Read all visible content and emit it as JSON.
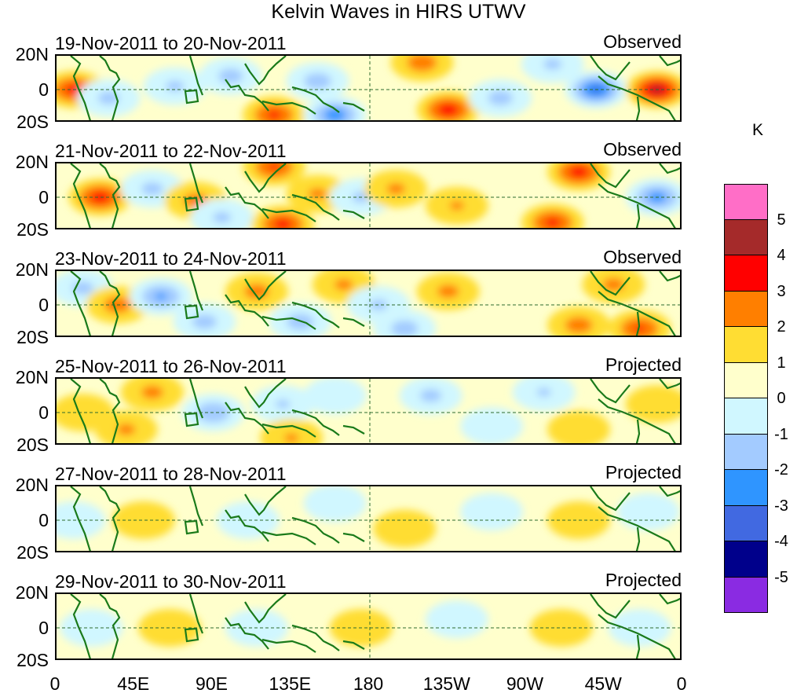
{
  "chart_data": {
    "type": "heatmap",
    "title": "Kelvin Waves in HIRS UTWV",
    "xlabel": "",
    "ylabel": "",
    "x_ticks": [
      "0",
      "45E",
      "90E",
      "135E",
      "180",
      "135W",
      "90W",
      "45W",
      "0"
    ],
    "y_ticks": [
      "20N",
      "0",
      "20S"
    ],
    "colorbar": {
      "unit": "K",
      "levels": [
        "5",
        "4",
        "3",
        "2",
        "1",
        "0",
        "-1",
        "-2",
        "-3",
        "-4",
        "-5"
      ],
      "colors": [
        "#ff6ec7",
        "#a52a2a",
        "#ff0000",
        "#ff7f00",
        "#ffdd33",
        "#ffffcc",
        "#d0f7ff",
        "#a3cbff",
        "#2f95ff",
        "#4169e1",
        "#00008b",
        "#8a2be2"
      ]
    },
    "panels": [
      {
        "date_range": "19-Nov-2011 to 20-Nov-2011",
        "status": "Observed",
        "anomalies": [
          {
            "lon": 10,
            "lat": 0,
            "value": 2.4
          },
          {
            "lon": 30,
            "lat": -5,
            "value": -1.3
          },
          {
            "lon": 68,
            "lat": 2,
            "value": -1.2
          },
          {
            "lon": 100,
            "lat": 8,
            "value": -1.4
          },
          {
            "lon": 125,
            "lat": -15,
            "value": 2.2
          },
          {
            "lon": 150,
            "lat": 5,
            "value": -1.5
          },
          {
            "lon": 160,
            "lat": -15,
            "value": -2.6
          },
          {
            "lon": 210,
            "lat": 16,
            "value": 1.6
          },
          {
            "lon": 225,
            "lat": -12,
            "value": 2.6
          },
          {
            "lon": 255,
            "lat": -5,
            "value": -1.4
          },
          {
            "lon": 285,
            "lat": 15,
            "value": -1.2
          },
          {
            "lon": 310,
            "lat": 0,
            "value": -3.1
          },
          {
            "lon": 345,
            "lat": 0,
            "value": 3.2
          }
        ]
      },
      {
        "date_range": "21-Nov-2011 to 22-Nov-2011",
        "status": "Observed",
        "anomalies": [
          {
            "lon": 25,
            "lat": 0,
            "value": 2.5
          },
          {
            "lon": 55,
            "lat": 5,
            "value": -1.3
          },
          {
            "lon": 80,
            "lat": -2,
            "value": 1.4
          },
          {
            "lon": 95,
            "lat": -12,
            "value": -1.2
          },
          {
            "lon": 125,
            "lat": 18,
            "value": 2.1
          },
          {
            "lon": 130,
            "lat": -16,
            "value": 2.4
          },
          {
            "lon": 150,
            "lat": 2,
            "value": 1.2
          },
          {
            "lon": 175,
            "lat": 0,
            "value": -1.2
          },
          {
            "lon": 195,
            "lat": 5,
            "value": 1.2
          },
          {
            "lon": 230,
            "lat": -5,
            "value": 1.1
          },
          {
            "lon": 285,
            "lat": -15,
            "value": 2.3
          },
          {
            "lon": 300,
            "lat": 15,
            "value": 2.5
          },
          {
            "lon": 345,
            "lat": 0,
            "value": -2.4
          }
        ]
      },
      {
        "date_range": "23-Nov-2011 to 24-Nov-2011",
        "status": "Observed",
        "anomalies": [
          {
            "lon": 15,
            "lat": 10,
            "value": -1.3
          },
          {
            "lon": 35,
            "lat": 0,
            "value": 1.5
          },
          {
            "lon": 60,
            "lat": 5,
            "value": -2.1
          },
          {
            "lon": 85,
            "lat": -10,
            "value": -1.4
          },
          {
            "lon": 115,
            "lat": 8,
            "value": 1.4
          },
          {
            "lon": 140,
            "lat": -10,
            "value": -1.5
          },
          {
            "lon": 165,
            "lat": 12,
            "value": 1.2
          },
          {
            "lon": 185,
            "lat": 0,
            "value": -1.2
          },
          {
            "lon": 200,
            "lat": -14,
            "value": -1.5
          },
          {
            "lon": 225,
            "lat": 8,
            "value": 1.3
          },
          {
            "lon": 300,
            "lat": -12,
            "value": 1.5
          },
          {
            "lon": 320,
            "lat": 12,
            "value": 1.3
          },
          {
            "lon": 335,
            "lat": -14,
            "value": 2.1
          }
        ]
      },
      {
        "date_range": "25-Nov-2011 to 26-Nov-2011",
        "status": "Projected",
        "anomalies": [
          {
            "lon": 15,
            "lat": 0,
            "value": 0.8
          },
          {
            "lon": 40,
            "lat": -10,
            "value": 1.2
          },
          {
            "lon": 55,
            "lat": 12,
            "value": 1.3
          },
          {
            "lon": 90,
            "lat": 0,
            "value": -1.8
          },
          {
            "lon": 130,
            "lat": 5,
            "value": -1.1
          },
          {
            "lon": 135,
            "lat": -15,
            "value": 1.1
          },
          {
            "lon": 160,
            "lat": 10,
            "value": -0.9
          },
          {
            "lon": 215,
            "lat": 10,
            "value": -1.3
          },
          {
            "lon": 250,
            "lat": -8,
            "value": -1.0
          },
          {
            "lon": 280,
            "lat": 12,
            "value": -1.1
          },
          {
            "lon": 300,
            "lat": -10,
            "value": 0.8
          },
          {
            "lon": 345,
            "lat": 5,
            "value": 0.9
          }
        ]
      },
      {
        "date_range": "27-Nov-2011 to 28-Nov-2011",
        "status": "Projected",
        "anomalies": [
          {
            "lon": 10,
            "lat": 0,
            "value": -0.7
          },
          {
            "lon": 50,
            "lat": 0,
            "value": 0.6
          },
          {
            "lon": 110,
            "lat": 0,
            "value": -0.8
          },
          {
            "lon": 160,
            "lat": 10,
            "value": -0.6
          },
          {
            "lon": 200,
            "lat": -5,
            "value": 0.5
          },
          {
            "lon": 250,
            "lat": 5,
            "value": -0.6
          },
          {
            "lon": 300,
            "lat": 0,
            "value": 0.5
          },
          {
            "lon": 340,
            "lat": 5,
            "value": -0.6
          }
        ]
      },
      {
        "date_range": "29-Nov-2011 to 30-Nov-2011",
        "status": "Projected",
        "anomalies": [
          {
            "lon": 20,
            "lat": 0,
            "value": -0.6
          },
          {
            "lon": 65,
            "lat": 0,
            "value": 0.5
          },
          {
            "lon": 115,
            "lat": 0,
            "value": -0.7
          },
          {
            "lon": 175,
            "lat": 0,
            "value": 0.5
          },
          {
            "lon": 230,
            "lat": 5,
            "value": -0.6
          },
          {
            "lon": 290,
            "lat": 0,
            "value": 0.5
          },
          {
            "lon": 335,
            "lat": 0,
            "value": -0.6
          }
        ]
      }
    ]
  }
}
